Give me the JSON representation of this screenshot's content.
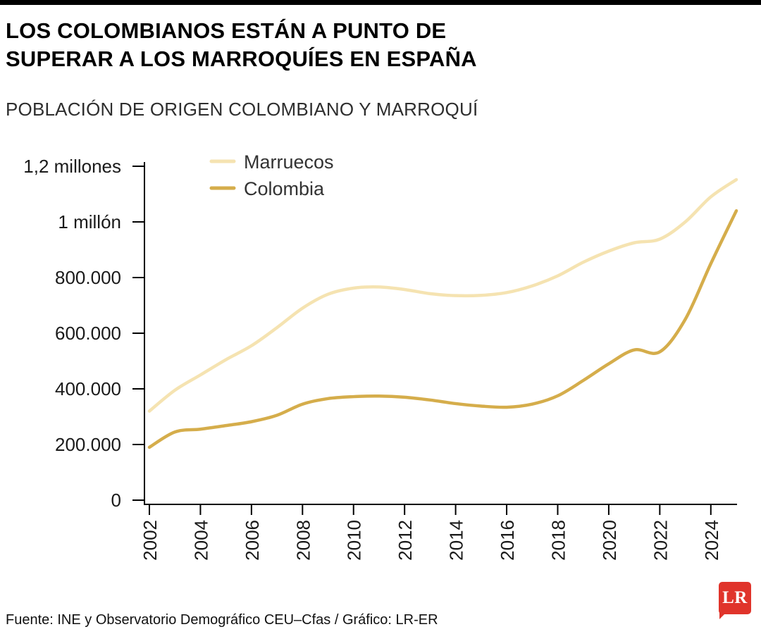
{
  "page": {
    "title_lines": [
      "LOS COLOMBIANOS ESTÁN A PUNTO DE",
      "SUPERAR A LOS MARROQUÍES EN ESPAÑA"
    ],
    "subtitle": "POBLACIÓN DE ORIGEN COLOMBIANO Y MARROQUÍ",
    "source": "Fuente: INE y Observatorio Demográfico CEU–Cfas / Gráfico: LR-ER",
    "logo_text": "LR"
  },
  "colors": {
    "marruecos_line": "#F5E3B1",
    "colombia_line": "#D5AD4B",
    "axis": "#000000",
    "tick_label": "#1a1a1a",
    "legend_text": "#333333",
    "logo_red": "#E0342B"
  },
  "chart_data": {
    "type": "line",
    "title": "POBLACIÓN DE ORIGEN COLOMBIANO Y MARROQUÍ",
    "x": [
      2002,
      2003,
      2004,
      2005,
      2006,
      2007,
      2008,
      2009,
      2010,
      2011,
      2012,
      2013,
      2014,
      2015,
      2016,
      2017,
      2018,
      2019,
      2020,
      2021,
      2022,
      2023,
      2024,
      2025
    ],
    "series": [
      {
        "name": "Marruecos",
        "color": "#F5E3B1",
        "values": [
          320000,
          395000,
          450000,
          505000,
          555000,
          620000,
          690000,
          740000,
          762000,
          766000,
          757000,
          742000,
          735000,
          736000,
          746000,
          770000,
          806000,
          855000,
          895000,
          925000,
          938000,
          1000000,
          1090000,
          1152000
        ]
      },
      {
        "name": "Colombia",
        "color": "#D5AD4B",
        "values": [
          190000,
          245000,
          255000,
          268000,
          282000,
          305000,
          345000,
          365000,
          372000,
          374000,
          370000,
          360000,
          347000,
          338000,
          334000,
          345000,
          375000,
          430000,
          490000,
          540000,
          533000,
          650000,
          850000,
          1040000
        ]
      }
    ],
    "y_ticks": [
      {
        "value": 0,
        "label": "0"
      },
      {
        "value": 200000,
        "label": "200.000"
      },
      {
        "value": 400000,
        "label": "400.000"
      },
      {
        "value": 600000,
        "label": "600.000"
      },
      {
        "value": 800000,
        "label": "800.000"
      },
      {
        "value": 1000000,
        "label": "1 millón"
      },
      {
        "value": 1200000,
        "label": "1,2 millones"
      }
    ],
    "x_tick_labels": [
      "2002",
      "2004",
      "2006",
      "2008",
      "2010",
      "2012",
      "2014",
      "2016",
      "2018",
      "2020",
      "2022",
      "2024"
    ],
    "ylim": [
      0,
      1200000
    ],
    "xlim": [
      2002,
      2025
    ],
    "grid": false,
    "legend_position": "top-inside-left"
  }
}
